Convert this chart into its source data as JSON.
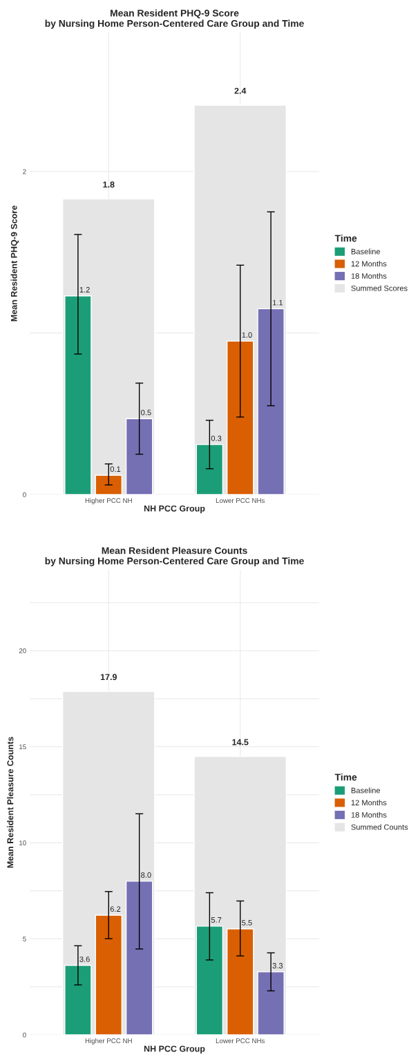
{
  "chart_data": [
    {
      "type": "bar",
      "title": "Mean Resident PHQ-9 Score\nby Nursing Home Person-Centered Care Group and Time",
      "xlabel": "NH PCC Group",
      "ylabel": "Mean Resident PHQ-9 Score",
      "legend_title": "Time",
      "categories": [
        "Higher PCC NH",
        "Lower PCC NHs"
      ],
      "series": [
        {
          "name": "Baseline",
          "color": "#1b9e77",
          "values": [
            1.23,
            0.31
          ],
          "errors": [
            [
              0.87,
              1.61
            ],
            [
              0.16,
              0.46
            ]
          ],
          "value_labels": [
            "1.2",
            "0.3"
          ]
        },
        {
          "name": "12 Months",
          "color": "#d95f02",
          "values": [
            0.12,
            0.95
          ],
          "errors": [
            [
              0.06,
              0.19
            ],
            [
              0.48,
              1.42
            ]
          ],
          "value_labels": [
            "0.1",
            "1.0"
          ]
        },
        {
          "name": "18 Months",
          "color": "#7570b3",
          "values": [
            0.47,
            1.15
          ],
          "errors": [
            [
              0.25,
              0.69
            ],
            [
              0.55,
              1.75
            ]
          ],
          "value_labels": [
            "0.5",
            "1.1"
          ]
        },
        {
          "name": "Summed Scores",
          "color": "#e5e5e5",
          "type": "bar",
          "values": [
            1.83,
            2.41
          ],
          "value_labels": [
            "1.8",
            "2.4"
          ]
        }
      ],
      "ylim": [
        0,
        2.86
      ],
      "yticks": [
        0,
        {
          "value": 1,
          "label": null
        },
        2
      ],
      "grid": true,
      "legend": "right"
    },
    {
      "type": "bar",
      "title": "Mean Resident Pleasure Counts\nby Nursing Home Person-Centered Care Group and Time",
      "xlabel": "NH PCC Group",
      "ylabel": "Mean Resident Pleasure Counts",
      "legend_title": "Time",
      "categories": [
        "Higher PCC NH",
        "Lower PCC NHs"
      ],
      "series": [
        {
          "name": "Baseline",
          "color": "#1b9e77",
          "values": [
            3.62,
            5.66
          ],
          "errors": [
            [
              2.6,
              4.64
            ],
            [
              3.9,
              7.4
            ]
          ],
          "value_labels": [
            "3.6",
            "5.7"
          ]
        },
        {
          "name": "12 Months",
          "color": "#d95f02",
          "values": [
            6.23,
            5.52
          ],
          "errors": [
            [
              5.01,
              7.46
            ],
            [
              4.11,
              6.97
            ]
          ],
          "value_labels": [
            "6.2",
            "5.5"
          ]
        },
        {
          "name": "18 Months",
          "color": "#7570b3",
          "values": [
            8.0,
            3.28
          ],
          "errors": [
            [
              4.47,
              11.51
            ],
            [
              2.29,
              4.27
            ]
          ],
          "value_labels": [
            "8.0",
            "3.3"
          ]
        },
        {
          "name": "Summed Counts",
          "color": "#e5e5e5",
          "type": "bar",
          "values": [
            17.88,
            14.49
          ],
          "value_labels": [
            "17.9",
            "14.5"
          ]
        }
      ],
      "ylim": [
        0,
        24.2
      ],
      "yticks": [
        0,
        {
          "value": 2.5,
          "label": null
        },
        5,
        {
          "value": 7.5,
          "label": null
        },
        10,
        {
          "value": 12.5,
          "label": null
        },
        15,
        {
          "value": 17.5,
          "label": null
        },
        20,
        {
          "value": 22.5,
          "label": null
        }
      ],
      "grid": true,
      "legend": "right"
    }
  ]
}
